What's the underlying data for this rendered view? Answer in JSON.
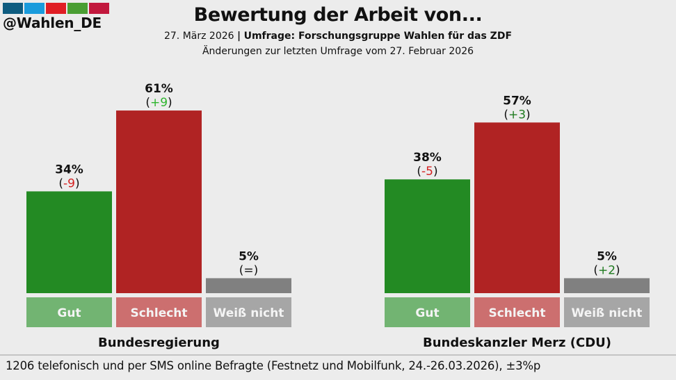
{
  "header": {
    "logo_text": "@Wahlen_DE",
    "logo_colors": [
      "#0e5c80",
      "#1a9bdc",
      "#e01e24",
      "#4a9e33",
      "#c2183d"
    ],
    "title": "Bewertung der Arbeit von...",
    "date": "27. März 2026",
    "separator": "|",
    "source": "Umfrage: Forschungsgruppe Wahlen für das ZDF",
    "change_note": "Änderungen zur letzten Umfrage vom 27. Februar 2026"
  },
  "footer": {
    "text": "1206 telefonisch und per SMS online Befragte (Festnetz und Mobilfunk, 24.-26.03.2026), ±3%p"
  },
  "colors": {
    "gut": "#238a23",
    "schlecht": "#b02323",
    "weiss_nicht": "#808080",
    "gut_label": "#72b472",
    "schlecht_label": "#cc6f6f",
    "weiss_nicht_label": "#a6a6a6",
    "change_positive": "#2db52d",
    "change_positive_dark": "#1e7a1e",
    "change_negative": "#d42020"
  },
  "chart_data": [
    {
      "type": "bar",
      "title": "Bundesregierung",
      "categories": [
        "Gut",
        "Schlecht",
        "Weiß nicht"
      ],
      "values": [
        34,
        61,
        5
      ],
      "value_labels": [
        "34%",
        "61%",
        "5%"
      ],
      "changes": [
        "-9",
        "+9",
        "="
      ],
      "change_colors": [
        "#d42020",
        "#2db52d",
        "#111111"
      ],
      "unit": "%",
      "ylim": [
        0,
        100
      ],
      "grid": false,
      "legend": "none"
    },
    {
      "type": "bar",
      "title": "Bundeskanzler Merz (CDU)",
      "categories": [
        "Gut",
        "Schlecht",
        "Weiß nicht"
      ],
      "values": [
        38,
        57,
        5
      ],
      "value_labels": [
        "38%",
        "57%",
        "5%"
      ],
      "changes": [
        "-5",
        "+3",
        "+2"
      ],
      "change_colors": [
        "#d42020",
        "#1e7a1e",
        "#1e7a1e"
      ],
      "unit": "%",
      "ylim": [
        0,
        100
      ],
      "grid": false,
      "legend": "none"
    }
  ]
}
